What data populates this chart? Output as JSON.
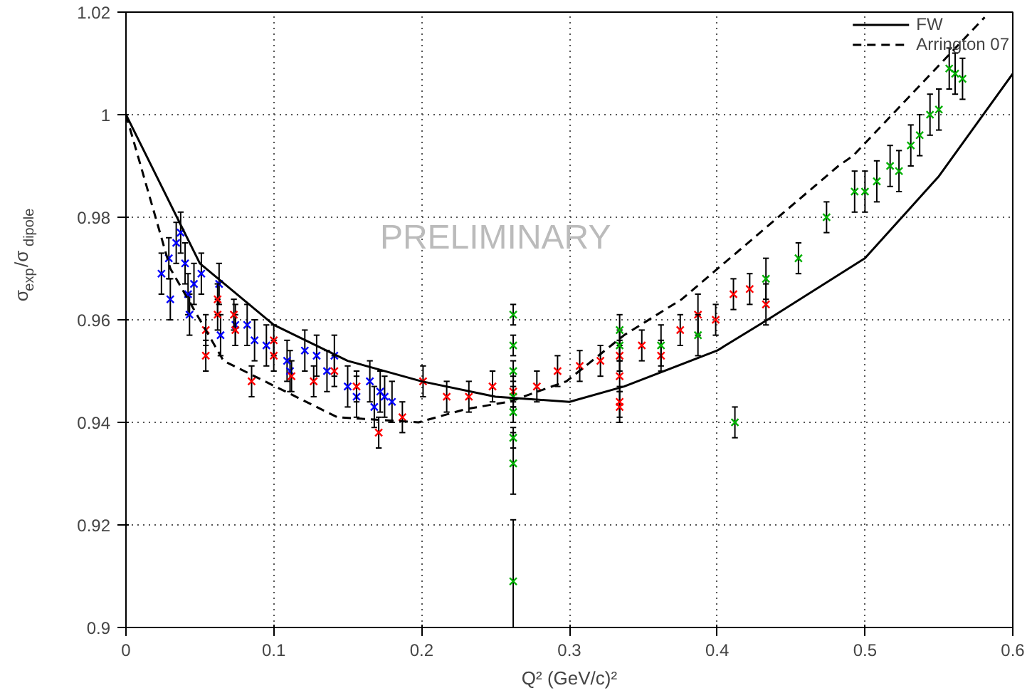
{
  "chart_data": {
    "type": "scatter",
    "xlabel": "Q² (GeV/c)²",
    "ylabel": "σ$_{exp}$/σ$_{dipole}$",
    "annotations": [
      "PRELIMINARY"
    ],
    "xlim": [
      0,
      0.6
    ],
    "ylim": [
      0.9,
      1.02
    ],
    "xticks": [
      0,
      0.1,
      0.2,
      0.3,
      0.4,
      0.5,
      0.6
    ],
    "yticks": [
      0.9,
      0.92,
      0.94,
      0.96,
      0.98,
      1,
      1.02
    ],
    "grid": true,
    "legend": "top right",
    "marker": "cross",
    "series": [
      {
        "color": "#0000ff",
        "x": [
          0.024,
          0.029,
          0.03,
          0.034,
          0.037,
          0.04,
          0.042,
          0.043,
          0.046,
          0.051,
          0.063,
          0.064,
          0.074,
          0.082,
          0.087,
          0.095,
          0.109,
          0.111,
          0.121,
          0.129,
          0.136,
          0.141,
          0.15,
          0.156,
          0.165,
          0.168,
          0.172,
          0.175,
          0.18
        ],
        "values": [
          0.969,
          0.972,
          0.964,
          0.975,
          0.977,
          0.971,
          0.965,
          0.961,
          0.967,
          0.969,
          0.967,
          0.957,
          0.959,
          0.959,
          0.956,
          0.955,
          0.952,
          0.95,
          0.954,
          0.953,
          0.95,
          0.953,
          0.947,
          0.945,
          0.948,
          0.943,
          0.946,
          0.945,
          0.944
        ],
        "errors": [
          0.004,
          0.004,
          0.004,
          0.004,
          0.004,
          0.004,
          0.004,
          0.004,
          0.004,
          0.004,
          0.004,
          0.004,
          0.004,
          0.004,
          0.004,
          0.004,
          0.004,
          0.004,
          0.004,
          0.004,
          0.004,
          0.004,
          0.004,
          0.004,
          0.004,
          0.004,
          0.004,
          0.004,
          0.004
        ]
      },
      {
        "color": "#ff0000",
        "x": [
          0.054,
          0.054,
          0.062,
          0.062,
          0.073,
          0.074,
          0.085,
          0.1,
          0.1,
          0.112,
          0.127,
          0.141,
          0.156,
          0.171,
          0.187,
          0.201,
          0.217,
          0.232,
          0.248,
          0.262,
          0.278,
          0.292,
          0.307,
          0.321,
          0.334,
          0.334,
          0.334,
          0.334,
          0.349,
          0.362,
          0.375,
          0.387,
          0.399,
          0.411,
          0.422,
          0.433
        ],
        "values": [
          0.958,
          0.953,
          0.964,
          0.961,
          0.961,
          0.958,
          0.948,
          0.956,
          0.953,
          0.949,
          0.948,
          0.95,
          0.947,
          0.938,
          0.941,
          0.948,
          0.945,
          0.945,
          0.947,
          0.946,
          0.947,
          0.95,
          0.951,
          0.952,
          0.953,
          0.949,
          0.944,
          0.943,
          0.955,
          0.953,
          0.958,
          0.961,
          0.96,
          0.965,
          0.966,
          0.963
        ],
        "errors": [
          0.003,
          0.003,
          0.003,
          0.003,
          0.003,
          0.003,
          0.003,
          0.003,
          0.003,
          0.003,
          0.003,
          0.003,
          0.003,
          0.003,
          0.003,
          0.003,
          0.003,
          0.003,
          0.003,
          0.003,
          0.003,
          0.003,
          0.003,
          0.003,
          0.003,
          0.003,
          0.003,
          0.003,
          0.003,
          0.003,
          0.003,
          0.004,
          0.003,
          0.003,
          0.003,
          0.004
        ]
      },
      {
        "color": "#00b000",
        "x": [
          0.262,
          0.262,
          0.262,
          0.262,
          0.262,
          0.262,
          0.262,
          0.262,
          0.334,
          0.334,
          0.362,
          0.387,
          0.412,
          0.433,
          0.455,
          0.474,
          0.493,
          0.5,
          0.508,
          0.517,
          0.523,
          0.531,
          0.537,
          0.544,
          0.55,
          0.557,
          0.561,
          0.566
        ],
        "values": [
          0.961,
          0.955,
          0.95,
          0.945,
          0.942,
          0.937,
          0.932,
          0.909,
          0.958,
          0.955,
          0.955,
          0.957,
          0.94,
          0.968,
          0.972,
          0.98,
          0.985,
          0.985,
          0.987,
          0.99,
          0.989,
          0.994,
          0.996,
          1.0,
          1.001,
          1.009,
          1.008,
          1.007
        ],
        "errors": [
          0.002,
          0.002,
          0.002,
          0.002,
          0.002,
          0.002,
          0.006,
          0.012,
          0.003,
          0.003,
          0.004,
          0.004,
          0.003,
          0.004,
          0.003,
          0.003,
          0.004,
          0.004,
          0.004,
          0.004,
          0.004,
          0.004,
          0.004,
          0.004,
          0.004,
          0.004,
          0.004,
          0.004
        ]
      },
      {
        "type": "line",
        "name": "FW",
        "color": "#000000",
        "line_style": "solid",
        "marker": "none",
        "x": [
          0,
          0.05,
          0.1,
          0.15,
          0.2,
          0.25,
          0.3,
          0.337,
          0.4,
          0.434,
          0.5,
          0.55,
          0.6
        ],
        "values": [
          1.0,
          0.971,
          0.959,
          0.952,
          0.948,
          0.945,
          0.944,
          0.947,
          0.954,
          0.96,
          0.972,
          0.988,
          1.008
        ]
      },
      {
        "type": "line",
        "name": "Arrington 07",
        "color": "#000000",
        "line_style": "dashed",
        "marker": "none",
        "x": [
          0,
          0.011,
          0.03,
          0.066,
          0.143,
          0.198,
          0.23,
          0.259,
          0.298,
          0.337,
          0.376,
          0.482,
          0.492,
          0.581
        ],
        "values": [
          1.0,
          0.989,
          0.97,
          0.952,
          0.941,
          0.94,
          0.9426,
          0.944,
          0.948,
          0.957,
          0.964,
          0.99,
          0.992,
          1.019
        ]
      }
    ]
  }
}
